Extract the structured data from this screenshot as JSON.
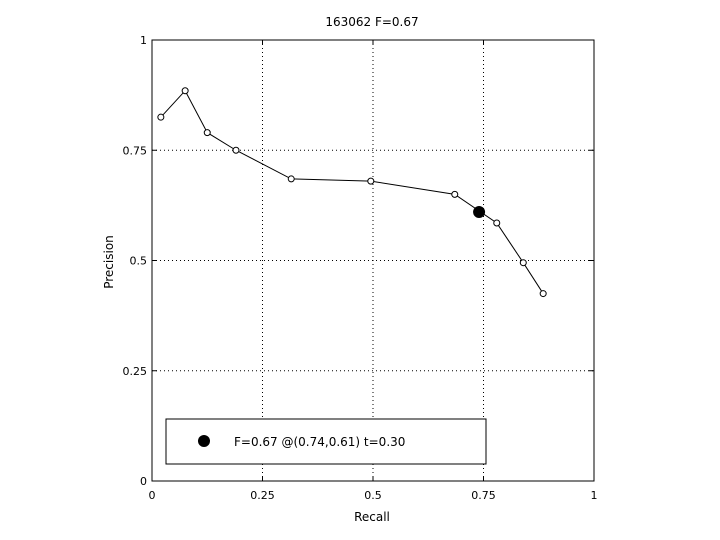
{
  "chart_data": {
    "type": "line",
    "title": "163062 F=0.67",
    "xlabel": "Recall",
    "ylabel": "Precision",
    "xlim": [
      0,
      1
    ],
    "ylim": [
      0,
      1
    ],
    "grid": true,
    "x_ticks": [
      0,
      0.25,
      0.5,
      0.75,
      1
    ],
    "x_tick_labels": [
      "0",
      "0.25",
      "0.5",
      "0.75",
      "1"
    ],
    "y_ticks": [
      0,
      0.25,
      0.5,
      0.75,
      1
    ],
    "y_tick_labels": [
      "0",
      "0.25",
      "0.5",
      "0.75",
      "1"
    ],
    "series": [
      {
        "x": [
          0.02,
          0.075,
          0.125,
          0.19,
          0.315,
          0.495,
          0.685,
          0.78,
          0.84,
          0.885
        ],
        "y": [
          0.825,
          0.885,
          0.79,
          0.75,
          0.685,
          0.68,
          0.65,
          0.585,
          0.495,
          0.425
        ],
        "color": "#000000"
      }
    ],
    "highlight_point": {
      "x": 0.74,
      "y": 0.61
    },
    "legend": {
      "placement": "bottom-left",
      "text": "F=0.67 @(0.74,0.61) t=0.30"
    }
  }
}
